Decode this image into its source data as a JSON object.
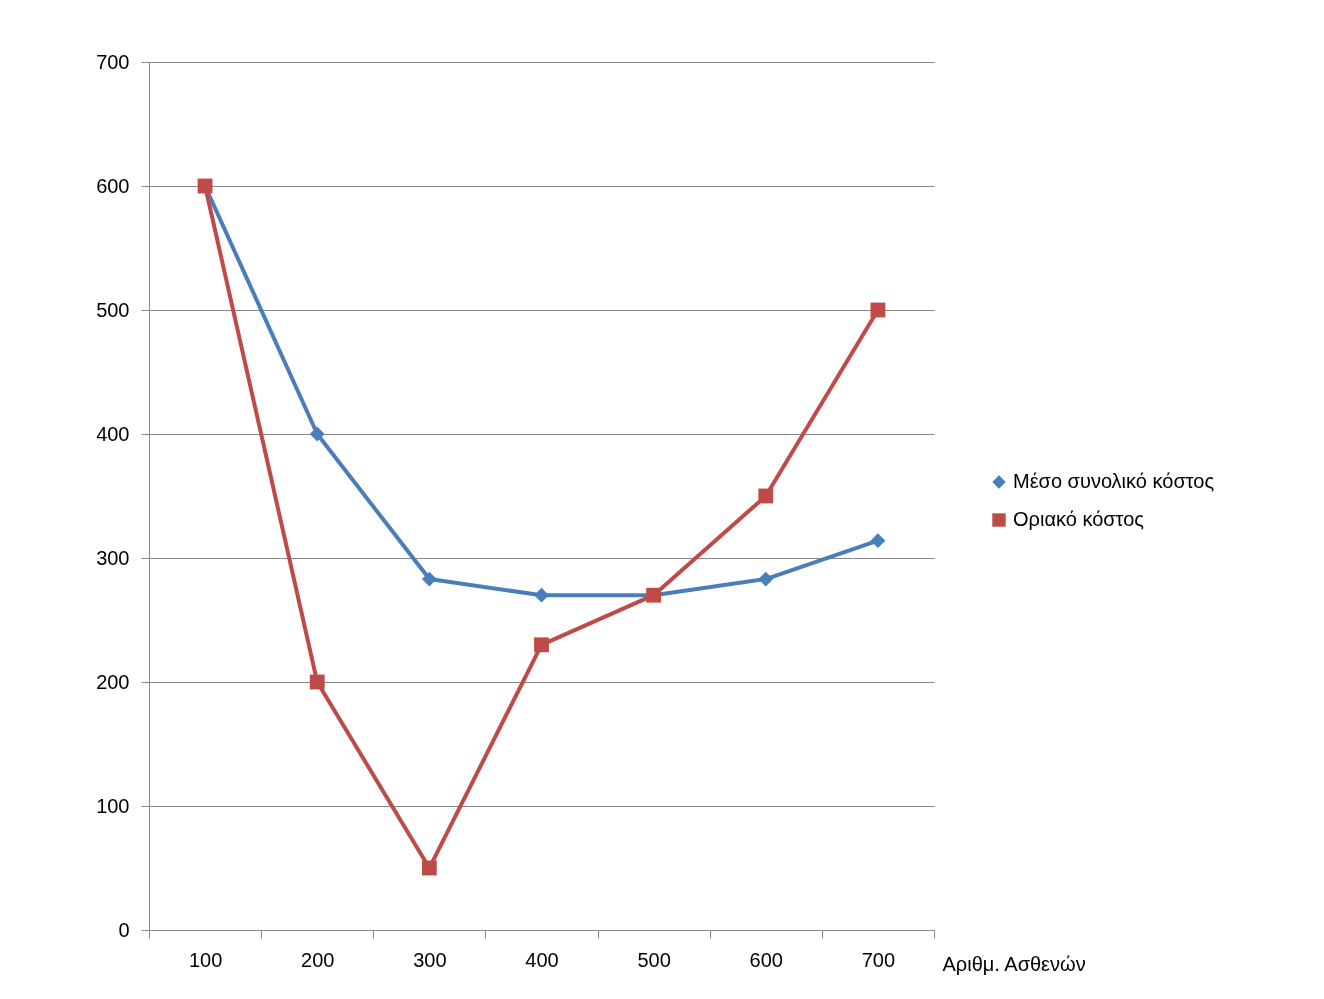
{
  "chart_data": {
    "type": "line",
    "xlabel": "Αριθμ. Ασθενών",
    "categories": [
      "100",
      "200",
      "300",
      "400",
      "500",
      "600",
      "700"
    ],
    "series": [
      {
        "name": "Μέσο συνολικό κόστος",
        "color": "#4a7ebb",
        "marker": "diamond",
        "values": [
          600,
          400,
          283,
          270,
          270,
          283,
          314
        ]
      },
      {
        "name": "Οριακό κόστος",
        "color": "#be4b48",
        "marker": "square",
        "values": [
          600,
          200,
          50,
          230,
          270,
          350,
          500
        ]
      }
    ],
    "ylim": [
      0,
      700
    ],
    "yticks": [
      0,
      100,
      200,
      300,
      400,
      500,
      600,
      700
    ],
    "grid": "y",
    "legend": "right",
    "line_style": "solid"
  }
}
